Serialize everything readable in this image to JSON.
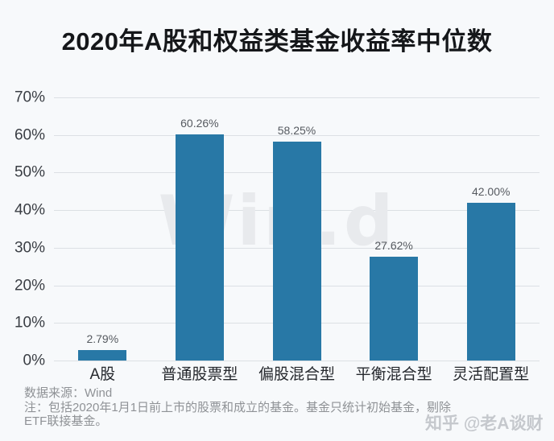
{
  "title": "2020年A股和权益类基金收益率中位数",
  "chart_data": {
    "type": "bar",
    "title": "2020年A股和权益类基金收益率中位数",
    "categories": [
      "A股",
      "普通股票型",
      "偏股混合型",
      "平衡混合型",
      "灵活配置型"
    ],
    "values": [
      2.79,
      60.26,
      58.25,
      27.62,
      42.0
    ],
    "value_labels": [
      "2.79%",
      "60.26%",
      "58.25%",
      "27.62%",
      "42.00%"
    ],
    "xlabel": "",
    "ylabel": "",
    "ylim": [
      0,
      70
    ],
    "ytick_step": 10,
    "ytick_labels": [
      "0%",
      "10%",
      "20%",
      "30%",
      "40%",
      "50%",
      "60%",
      "70%"
    ],
    "grid": true,
    "legend": false,
    "bar_color": "#2878a6"
  },
  "watermarks": {
    "center": "Win.d",
    "bottom_right": "知乎 @老A谈财"
  },
  "footer": {
    "source": "数据来源：Wind",
    "note_line1": "注：包括2020年1月1日前上市的股票和成立的基金。基金只统计初始基金，剔除",
    "note_line2": "ETF联接基金。"
  },
  "colors": {
    "background": "#f7f9fb",
    "bar": "#2878a6",
    "gridline": "#dce0e4",
    "axis_label": "#3a3e44",
    "category_label": "#25282d",
    "value_label": "#565a60",
    "footer_text": "#8f9296",
    "wind_watermark": "#e8eaed",
    "zhihu_watermark": "#bcbfc4"
  }
}
